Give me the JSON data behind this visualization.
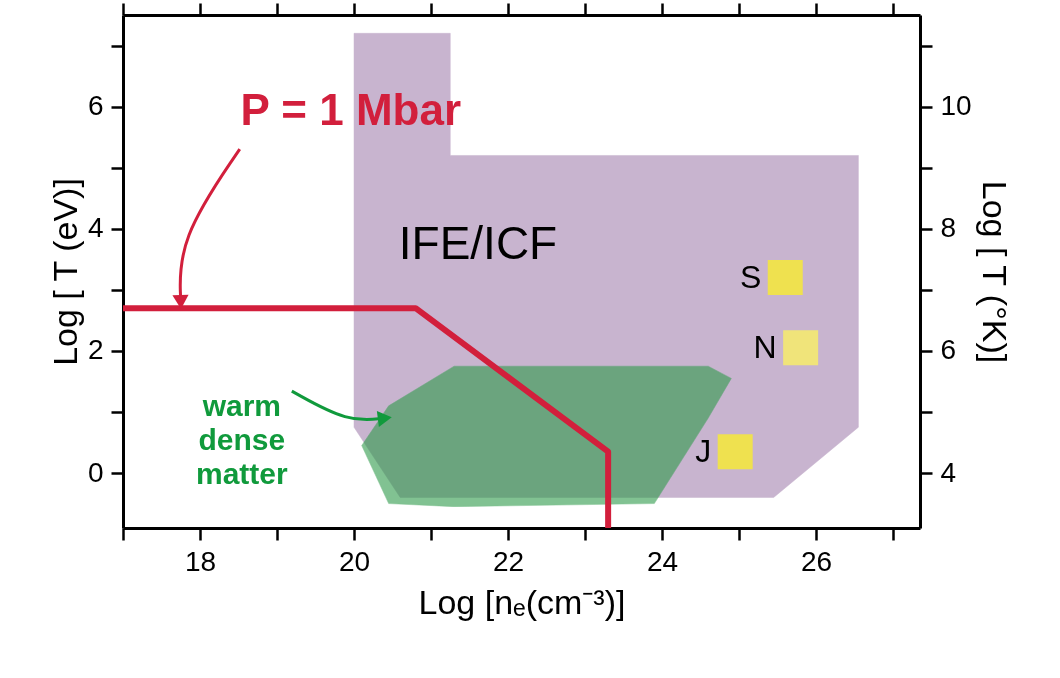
{
  "chart_data": {
    "type": "line",
    "xlabel": "Log [nₑ(cm⁻³)]",
    "ylabel": "Log [ T (eV)]",
    "y2label": "Log [ T (°K)]",
    "xlim": [
      17,
      27.35
    ],
    "ylim": [
      -0.9,
      7.5
    ],
    "y2lim": [
      3.1,
      11.5
    ],
    "xticks": [
      {
        "value": 17,
        "label": null
      },
      18,
      {
        "value": 19,
        "label": null
      },
      20,
      {
        "value": 21,
        "label": null
      },
      22,
      {
        "value": 23,
        "label": null
      },
      24,
      {
        "value": 25,
        "label": null
      },
      26,
      {
        "value": 27,
        "label": null
      }
    ],
    "yticks": [
      0,
      {
        "value": 1,
        "label": null
      },
      2,
      {
        "value": 3,
        "label": null
      },
      4,
      {
        "value": 5,
        "label": null
      },
      6,
      {
        "value": 7,
        "label": null
      }
    ],
    "y2ticks": [
      4,
      {
        "value": 5,
        "label": null
      },
      6,
      {
        "value": 7,
        "label": null
      },
      8,
      {
        "value": 9,
        "label": null
      },
      10,
      {
        "value": 11,
        "label": null
      }
    ],
    "grid": false,
    "series": [
      {
        "type": "area",
        "color": "#c8b4cf",
        "x": [
          20,
          20,
          21.25,
          21.25,
          26.55,
          26.55,
          25.45,
          20.6
        ],
        "values": [
          0.75,
          7.2,
          7.2,
          5.2,
          5.2,
          0.75,
          -0.4,
          -0.4
        ]
      },
      {
        "type": "area",
        "color": "#2e9a4a",
        "x": [
          20.1,
          20.45,
          21.3,
          24.6,
          24.9,
          24.6,
          23.9,
          21.3,
          20.45
        ],
        "values": [
          0.45,
          1.1,
          1.75,
          1.75,
          1.55,
          0.9,
          -0.5,
          -0.55,
          -0.5
        ]
      },
      {
        "type": "line",
        "color": "#d21f3c",
        "x": [
          17,
          20.8,
          23.3,
          23.3
        ],
        "values": [
          2.7,
          2.7,
          0.35,
          -0.9
        ]
      },
      {
        "type": "scatter",
        "name": "S",
        "color": "#efe14f",
        "marker": "square",
        "x": [
          25.6
        ],
        "values": [
          3.2
        ]
      },
      {
        "type": "scatter",
        "name": "N",
        "color": "#f0e47a",
        "marker": "square",
        "x": [
          25.8
        ],
        "values": [
          2.05
        ]
      },
      {
        "type": "scatter",
        "name": "J",
        "color": "#efe14f",
        "marker": "square",
        "x": [
          24.95
        ],
        "values": [
          0.35
        ]
      }
    ],
    "annotations": [
      {
        "text": "P = 1 Mbar",
        "x": 17.75,
        "y": 2.8
      },
      "IFE/ICF",
      {
        "text": "warm dense matter",
        "x": 20.4,
        "y": 0.9
      }
    ]
  }
}
